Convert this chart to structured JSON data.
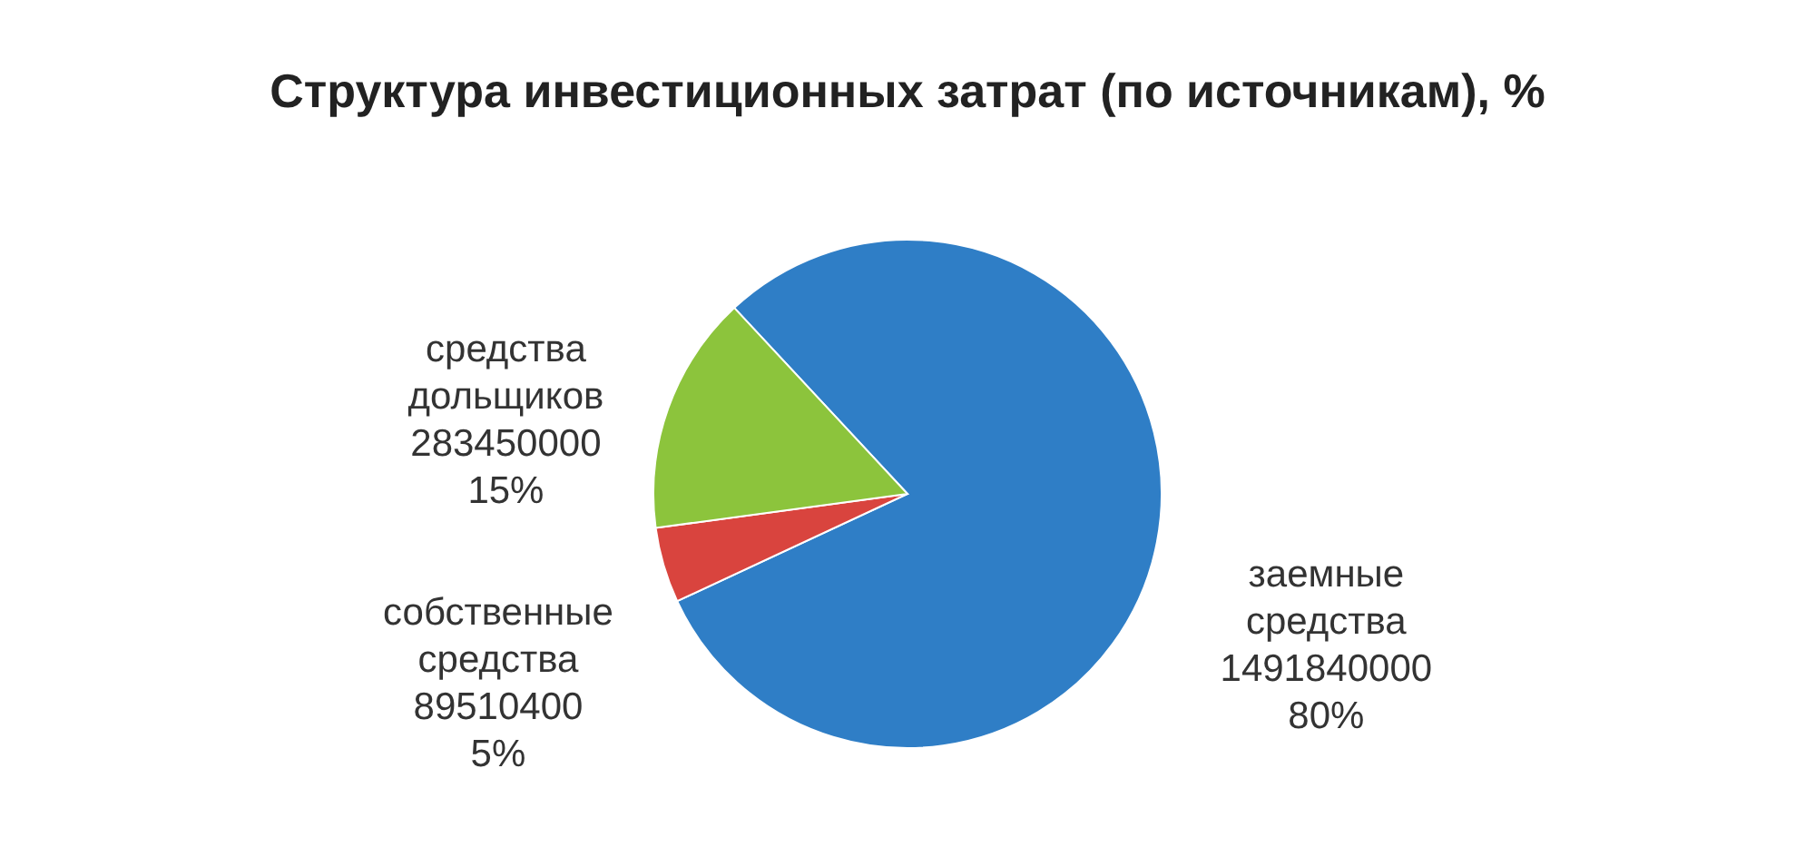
{
  "chart_data": {
    "type": "pie",
    "title": "Структура инвестиционных затрат (по источникам), %",
    "categories": [
      "заемные средства",
      "собственные средства",
      "средства дольщиков"
    ],
    "values": [
      1491840000,
      89510400,
      283450000
    ],
    "value_labels": [
      "1491840000\n80%",
      "89510400\n5%",
      "283450000\n15%"
    ],
    "colors": [
      "#2f7ec6",
      "#d9443e",
      "#8cc43c"
    ],
    "legend": false
  }
}
